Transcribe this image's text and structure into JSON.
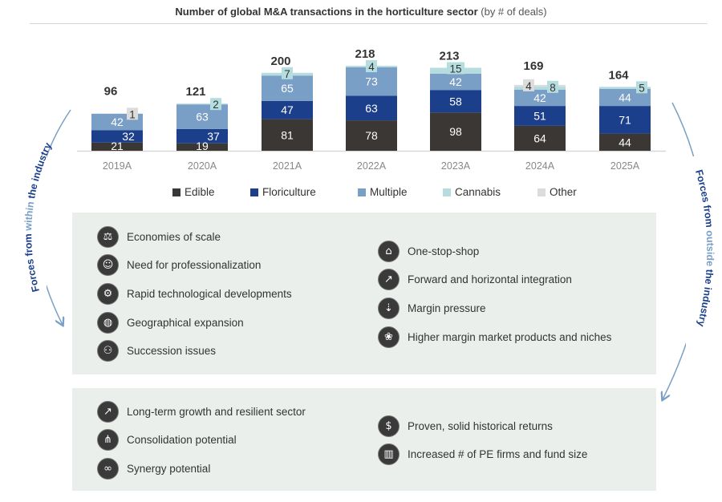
{
  "title": {
    "bold": "Number of global M&A transactions in the horticulture sector",
    "light": "(by # of deals)"
  },
  "chart_data": {
    "type": "bar",
    "stacked": true,
    "title": "Number of global M&A transactions in the horticulture sector (by # of deals)",
    "categories": [
      "2019A",
      "2020A",
      "2021A",
      "2022A",
      "2023A",
      "2024A",
      "2025A"
    ],
    "series": [
      {
        "name": "Edible",
        "color": "#3b3734",
        "values": [
          21,
          19,
          81,
          78,
          98,
          64,
          44
        ]
      },
      {
        "name": "Floriculture",
        "color": "#1c3f8c",
        "values": [
          32,
          37,
          47,
          63,
          58,
          51,
          71
        ]
      },
      {
        "name": "Multiple",
        "color": "#7a9fc6",
        "values": [
          42,
          63,
          65,
          73,
          42,
          42,
          44
        ]
      },
      {
        "name": "Cannabis",
        "color": "#b5dde0",
        "values": [
          0,
          2,
          7,
          4,
          15,
          8,
          5
        ]
      },
      {
        "name": "Other",
        "color": "#dcdcdc",
        "values": [
          1,
          0,
          0,
          0,
          0,
          4,
          0
        ]
      }
    ],
    "totals": [
      96,
      121,
      200,
      218,
      213,
      169,
      164
    ],
    "ylim": [
      0,
      230
    ],
    "grid": false,
    "legend": "bottom"
  },
  "within_label": {
    "pre": "Forces from ",
    "accent": "within",
    "post": " the industry"
  },
  "outside_label": {
    "pre": "Forces from ",
    "accent": "outside",
    "post": " the industry"
  },
  "within_items": [
    {
      "icon": "scale-icon",
      "glyph": "⚖",
      "label": "Economies of scale"
    },
    {
      "icon": "professional-icon",
      "glyph": "☺",
      "label": "Need for professionalization"
    },
    {
      "icon": "technology-icon",
      "glyph": "⚙",
      "label": "Rapid technological developments"
    },
    {
      "icon": "globe-icon",
      "glyph": "◍",
      "label": "Geographical expansion"
    },
    {
      "icon": "succession-icon",
      "glyph": "⚇",
      "label": "Succession issues"
    }
  ],
  "outside_items": [
    {
      "icon": "shop-icon",
      "glyph": "⌂",
      "label": "One-stop-shop"
    },
    {
      "icon": "integration-icon",
      "glyph": "↗",
      "label": "Forward and horizontal integration"
    },
    {
      "icon": "margin-icon",
      "glyph": "⇣",
      "label": "Margin pressure"
    },
    {
      "icon": "niche-icon",
      "glyph": "❀",
      "label": "Higher margin market products and niches"
    }
  ],
  "bottom_left_items": [
    {
      "icon": "growth-icon",
      "glyph": "↗",
      "label": "Long-term growth and resilient sector"
    },
    {
      "icon": "consolidation-icon",
      "glyph": "⋔",
      "label": "Consolidation potential"
    },
    {
      "icon": "synergy-icon",
      "glyph": "∞",
      "label": "Synergy potential"
    }
  ],
  "bottom_right_items": [
    {
      "icon": "returns-icon",
      "glyph": "$",
      "label": "Proven, solid historical returns"
    },
    {
      "icon": "pe-firms-icon",
      "glyph": "▥",
      "label": "Increased # of PE firms and fund size"
    }
  ]
}
